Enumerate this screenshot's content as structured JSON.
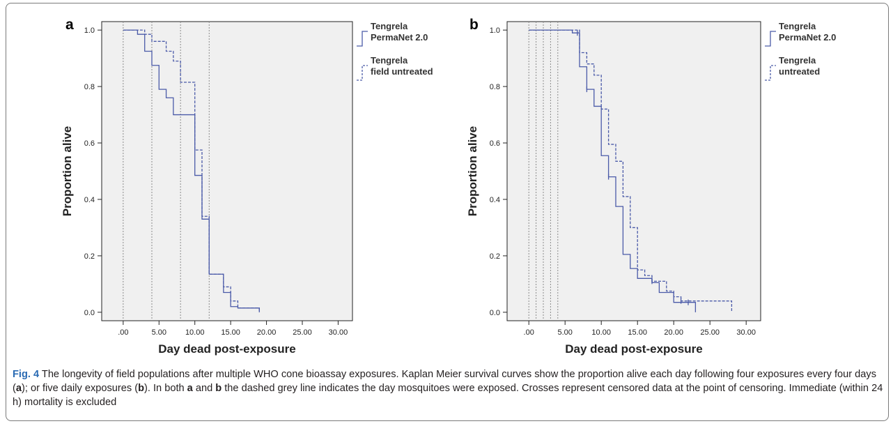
{
  "panels": [
    {
      "letter": "a",
      "chart_data": {
        "type": "line",
        "ylabel": "Proportion alive",
        "xlabel": "Day dead post-exposure",
        "xlim": [
          -3,
          32
        ],
        "ylim": [
          -0.03,
          1.03
        ],
        "x_ticks": [
          0,
          5,
          10,
          15,
          20,
          25,
          30
        ],
        "x_tick_labels": [
          ".00",
          "5.00",
          "10.00",
          "15.00",
          "20.00",
          "25.00",
          "30.00"
        ],
        "y_ticks": [
          0,
          0.2,
          0.4,
          0.6,
          0.8,
          1.0
        ],
        "y_tick_labels": [
          "0.0",
          "0.2",
          "0.4",
          "0.6",
          "0.8",
          "1.0"
        ],
        "exposure_days": [
          0,
          4,
          8,
          12
        ],
        "series": [
          {
            "name": "Tengrela PermaNet 2.0",
            "style": "solid",
            "color": "#4a5aa8",
            "x": [
              0,
              2,
              3,
              4,
              5,
              6,
              7,
              8,
              10,
              11,
              12,
              14,
              15,
              16,
              19
            ],
            "y": [
              1.0,
              0.985,
              0.925,
              0.875,
              0.79,
              0.76,
              0.7,
              0.7,
              0.485,
              0.33,
              0.135,
              0.07,
              0.02,
              0.015,
              0.0
            ],
            "censored_x": [],
            "censored_y": []
          },
          {
            "name": "Tengrela field untreated",
            "style": "dashed",
            "color": "#4a5aa8",
            "x": [
              0,
              3,
              4,
              6,
              7,
              8,
              10,
              11,
              12,
              14,
              15,
              16,
              17,
              19
            ],
            "y": [
              1.0,
              0.985,
              0.96,
              0.925,
              0.89,
              0.815,
              0.575,
              0.34,
              0.135,
              0.09,
              0.04,
              0.015,
              0.015,
              0.0
            ],
            "censored_x": [],
            "censored_y": []
          }
        ]
      }
    },
    {
      "letter": "b",
      "chart_data": {
        "type": "line",
        "ylabel": "Proportion alive",
        "xlabel": "Day dead post-exposure",
        "xlim": [
          -3,
          32
        ],
        "ylim": [
          -0.03,
          1.03
        ],
        "x_ticks": [
          0,
          5,
          10,
          15,
          20,
          25,
          30
        ],
        "x_tick_labels": [
          ".00",
          "5.00",
          "10.00",
          "15.00",
          "20.00",
          "25.00",
          "30.00"
        ],
        "y_ticks": [
          0,
          0.2,
          0.4,
          0.6,
          0.8,
          1.0
        ],
        "y_tick_labels": [
          "0.0",
          "0.2",
          "0.4",
          "0.6",
          "0.8",
          "1.0"
        ],
        "exposure_days": [
          0,
          1,
          2,
          3,
          4
        ],
        "series": [
          {
            "name": "Tengrela PermaNet 2.0",
            "style": "solid",
            "color": "#4a5aa8",
            "x": [
              0,
              6,
              7,
              8,
              9,
              10,
              11,
              12,
              13,
              14,
              15,
              17,
              18,
              20,
              23
            ],
            "y": [
              1.0,
              0.99,
              0.87,
              0.79,
              0.73,
              0.555,
              0.48,
              0.375,
              0.205,
              0.155,
              0.12,
              0.105,
              0.07,
              0.035,
              0.0
            ],
            "censored_x": [
              6.7,
              8,
              11,
              22
            ],
            "censored_y": [
              0.99,
              0.79,
              0.48,
              0.035
            ]
          },
          {
            "name": "Tengrela untreated",
            "style": "dashed",
            "color": "#4a5aa8",
            "x": [
              0,
              7,
              8,
              9,
              10,
              11,
              12,
              13,
              14,
              15,
              16,
              17,
              19,
              20,
              21,
              28
            ],
            "y": [
              1.0,
              0.92,
              0.88,
              0.84,
              0.72,
              0.595,
              0.535,
              0.41,
              0.3,
              0.15,
              0.13,
              0.11,
              0.075,
              0.055,
              0.04,
              0.0
            ],
            "censored_x": [
              17,
              21
            ],
            "censored_y": [
              0.11,
              0.04
            ]
          }
        ]
      }
    }
  ],
  "legend_a": [
    "Tengrela PermaNet 2.0",
    "Tengrela field untreated"
  ],
  "legend_b": [
    "Tengrela PermaNet 2.0",
    "Tengrela untreated"
  ],
  "caption": {
    "fig_label": "Fig. 4",
    "text_1": "  The longevity of field populations after multiple WHO cone bioassay exposures. Kaplan Meier survival curves show the proportion alive each day following four exposures every four days (",
    "a1": "a",
    "text_2": "); or five daily exposures (",
    "b1": "b",
    "text_3": "). In both ",
    "a2": "a",
    "text_4": " and ",
    "b2": "b",
    "text_5": " the dashed grey line indicates the day mosquitoes were exposed. Crosses represent censored data at the point of censoring. Immediate (within 24 h) mortality is excluded"
  }
}
